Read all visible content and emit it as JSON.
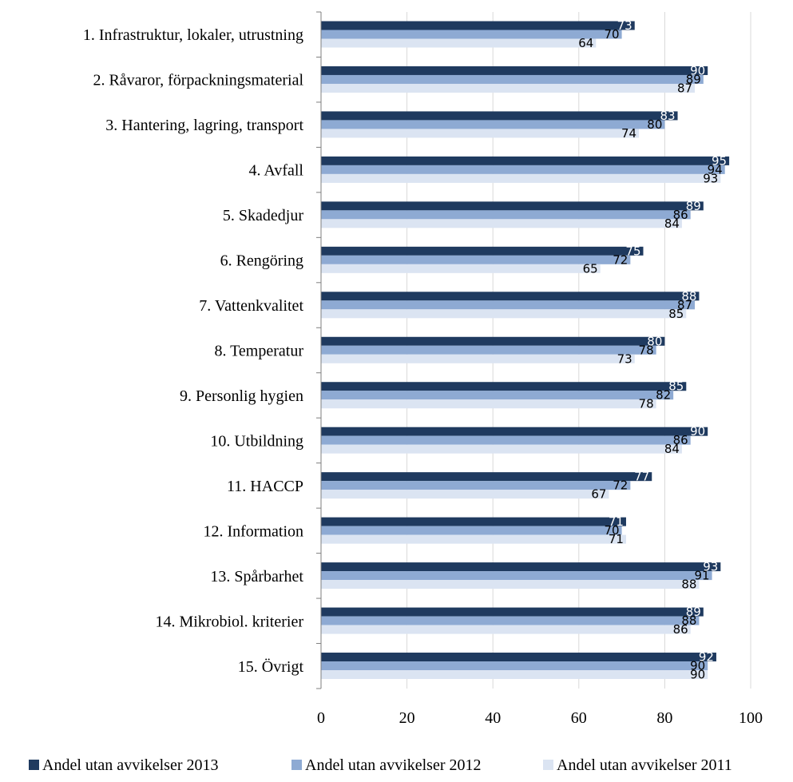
{
  "chart_data": {
    "type": "bar",
    "orientation": "horizontal",
    "categories": [
      "1. Infrastruktur, lokaler, utrustning",
      "2. Råvaror, förpackningsmaterial",
      "3. Hantering, lagring, transport",
      "4. Avfall",
      "5. Skadedjur",
      "6. Rengöring",
      "7. Vattenkvalitet",
      "8. Temperatur",
      "9. Personlig hygien",
      "10. Utbildning",
      "11. HACCP",
      "12. Information",
      "13. Spårbarhet",
      "14. Mikrobiol. kriterier",
      "15. Övrigt"
    ],
    "series": [
      {
        "name": "Andel utan avvikelser 2013",
        "color": "#1f3a5f",
        "label_color": "#ffffff",
        "values": [
          73,
          90,
          83,
          95,
          89,
          75,
          88,
          80,
          85,
          90,
          77,
          71,
          93,
          89,
          92
        ]
      },
      {
        "name": "Andel utan avvikelser 2012",
        "color": "#8eaad3",
        "label_color": "#000000",
        "values": [
          70,
          89,
          80,
          94,
          86,
          72,
          87,
          78,
          82,
          86,
          72,
          70,
          91,
          88,
          90
        ]
      },
      {
        "name": "Andel utan avvikelser 2011",
        "color": "#dbe4f2",
        "label_color": "#000000",
        "values": [
          64,
          87,
          74,
          93,
          84,
          65,
          85,
          73,
          78,
          84,
          67,
          71,
          88,
          86,
          90
        ]
      }
    ],
    "xlim": [
      0,
      100
    ],
    "xticks": [
      0,
      20,
      40,
      60,
      80,
      100
    ],
    "grid": "vertical",
    "legend_position": "bottom"
  }
}
